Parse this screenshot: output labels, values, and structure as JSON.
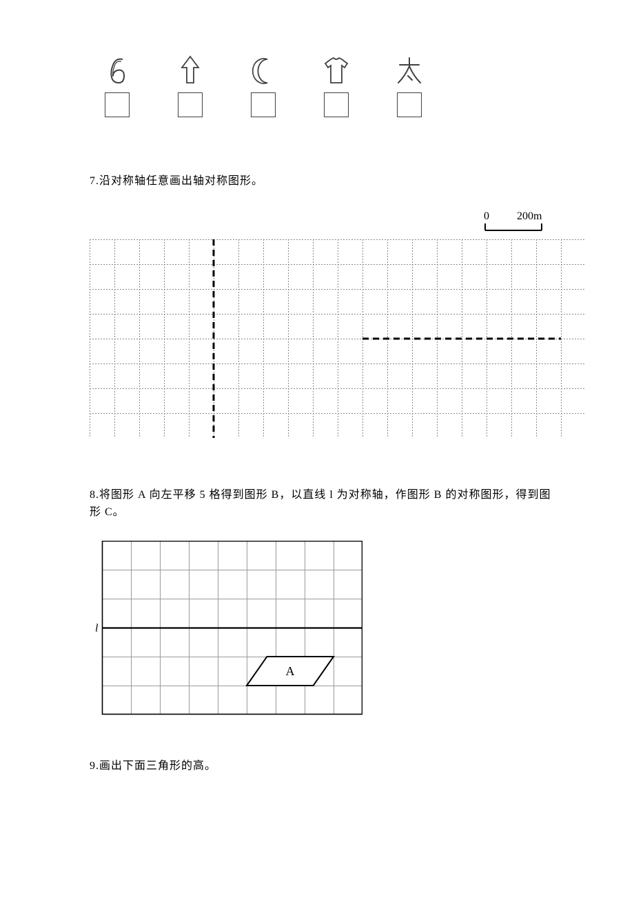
{
  "icons": [
    {
      "name": "six-icon",
      "label": "6"
    },
    {
      "name": "arrow-up-icon",
      "label": "↑"
    },
    {
      "name": "moon-icon",
      "label": "☾"
    },
    {
      "name": "tshirt-icon",
      "label": "👕"
    },
    {
      "name": "tai-icon",
      "label": "太"
    }
  ],
  "q7": {
    "text": "7.沿对称轴任意画出轴对称图形。",
    "scale": {
      "zero": "0",
      "value": "200m"
    },
    "grid": {
      "cols": 20,
      "rows": 8,
      "cell": 36,
      "stroke_color": "#888888",
      "stroke_width": 1,
      "stroke_dash": "2,2",
      "axis_color": "#000000",
      "axis_width": 3,
      "axis_dash": "9,6",
      "vline_col": 5,
      "hline_row": 4,
      "hline_start_col": 11,
      "hline_end_col": 19
    }
  },
  "q8": {
    "text": "8.将图形 A 向左平移 5 格得到图形 B，以直线 l 为对称轴，作图形 B 的对称图形，得到图形 C。",
    "grid": {
      "cols": 9,
      "rows": 6,
      "cell": 42,
      "outer_color": "#000000",
      "inner_color": "#9a9a9a",
      "axis_row": 3,
      "axis_label": "l",
      "axis_label_style": "italic"
    },
    "shapeA": {
      "label": "A",
      "points": [
        [
          5.7,
          4
        ],
        [
          8,
          4
        ],
        [
          7.3,
          5
        ],
        [
          5,
          5
        ]
      ],
      "fill": "#ffffff",
      "stroke": "#000000",
      "stroke_width": 2
    }
  },
  "q9": {
    "text": "9.画出下面三角形的高。"
  },
  "colors": {
    "page_bg": "#ffffff",
    "text": "#000000",
    "icon_stroke": "#404040"
  }
}
